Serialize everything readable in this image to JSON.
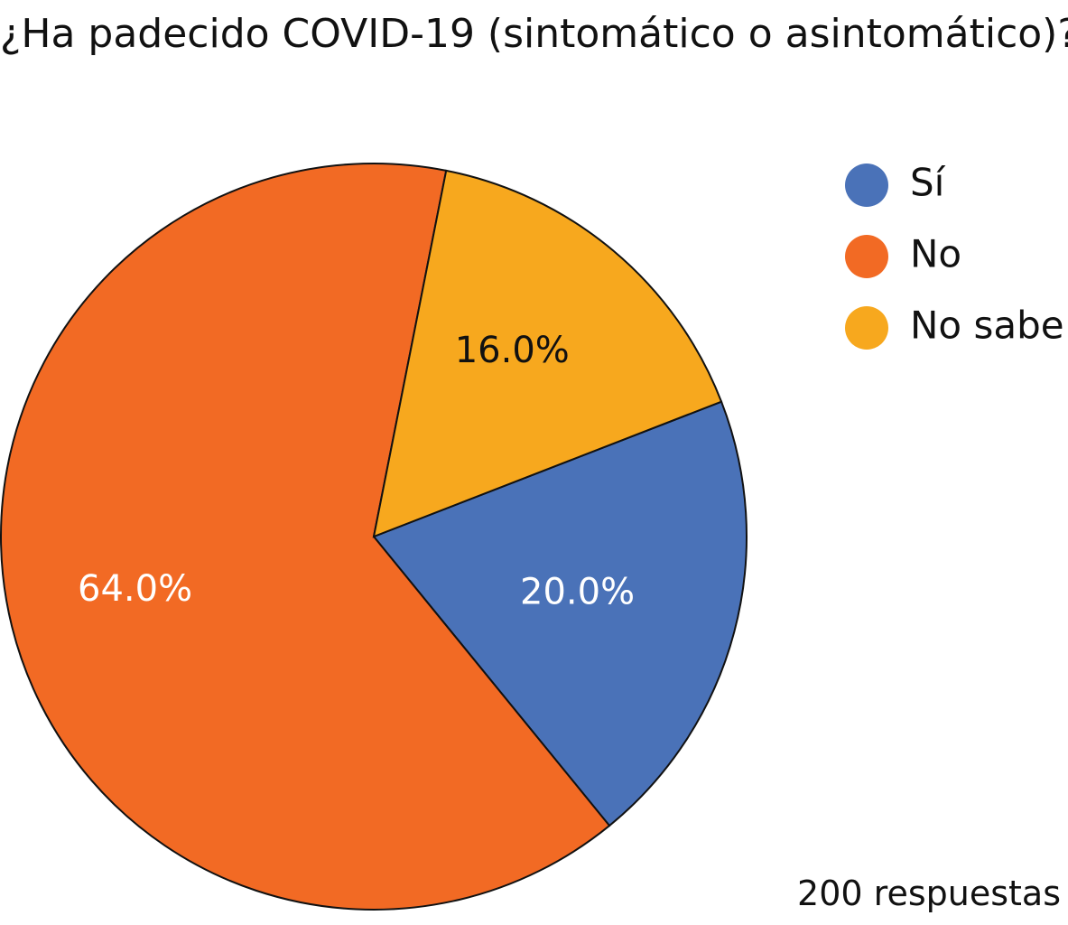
{
  "title": "¿Ha padecido COVID-19 (sintomático o asintomático)?",
  "total_responses": "200 respuestas",
  "chart_data": {
    "type": "pie",
    "title": "¿Ha padecido COVID-19 (sintomático o asintomático)?",
    "categories": [
      "Sí",
      "No",
      "No sabe"
    ],
    "values": [
      20.0,
      64.0,
      16.0
    ],
    "labels": [
      "20.0%",
      "64.0%",
      "16.0%"
    ],
    "colors": [
      "#4a72b8",
      "#f26a24",
      "#f7a81e"
    ],
    "label_colors": [
      "#ffffff",
      "#ffffff",
      "#111111"
    ],
    "legend": {
      "position": "right",
      "items": [
        "Sí",
        "No",
        "No sabe"
      ]
    }
  }
}
